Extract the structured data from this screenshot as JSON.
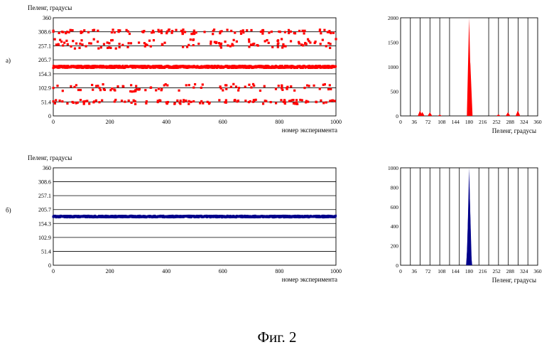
{
  "figure": {
    "caption": "Фиг. 2"
  },
  "chart_data": [
    {
      "id": "a-scatter",
      "panel_label": "а)",
      "type": "scatter",
      "ylabel": "Пеленг, градусы",
      "xlabel": "номер эксперимента",
      "xlim": [
        0,
        1000
      ],
      "ylim": [
        0,
        360
      ],
      "xticks": [
        "0",
        "200",
        "400",
        "600",
        "800",
        "1000"
      ],
      "yticks": [
        "0",
        "51.4",
        "102.9",
        "154.3",
        "205.7",
        "257.1",
        "308.6",
        "360"
      ],
      "grid_y": [
        51.4,
        102.9,
        154.3,
        205.7,
        257.1,
        308.6
      ],
      "color": "#ff0000",
      "series": [
        {
          "center": 180,
          "spread": 4,
          "points": 1000
        },
        {
          "center": 308.6,
          "spread": 8,
          "points": 100
        },
        {
          "center": 270,
          "spread": 12,
          "points": 70
        },
        {
          "center": 257.1,
          "spread": 10,
          "points": 50
        },
        {
          "center": 102.9,
          "spread": 14,
          "points": 90
        },
        {
          "center": 51.4,
          "spread": 8,
          "points": 110
        }
      ]
    },
    {
      "id": "a-hist",
      "type": "bar",
      "xlabel": "Пеленг, градусы",
      "xlim": [
        0,
        360
      ],
      "ylim": [
        0,
        2000
      ],
      "xticks": [
        "0",
        "36",
        "72",
        "108",
        "144",
        "180",
        "216",
        "252",
        "288",
        "324",
        "360"
      ],
      "yticks": [
        "0",
        "500",
        "1000",
        "1500",
        "2000"
      ],
      "sector_lines": [
        25.7,
        51.4,
        77.1,
        102.9,
        128.6,
        231.4,
        257.1,
        282.9,
        308.6,
        334.3
      ],
      "color": "#ff0000",
      "peaks": [
        {
          "x": 51,
          "value": 110
        },
        {
          "x": 57,
          "value": 80
        },
        {
          "x": 77,
          "value": 75
        },
        {
          "x": 103,
          "value": 25
        },
        {
          "x": 180,
          "value": 2000
        },
        {
          "x": 183,
          "value": 1100
        },
        {
          "x": 257,
          "value": 30
        },
        {
          "x": 282,
          "value": 75
        },
        {
          "x": 308,
          "value": 110
        }
      ]
    },
    {
      "id": "b-scatter",
      "panel_label": "б)",
      "type": "scatter",
      "ylabel": "Пеленг, градусы",
      "xlabel": "номер эксперимента",
      "xlim": [
        0,
        1000
      ],
      "ylim": [
        0,
        360
      ],
      "xticks": [
        "0",
        "200",
        "400",
        "600",
        "800",
        "1000"
      ],
      "yticks": [
        "0",
        "51.4",
        "102.9",
        "154.3",
        "205.7",
        "257.1",
        "308.6",
        "360"
      ],
      "grid_y": [
        51.4,
        102.9,
        154.3,
        205.7,
        257.1,
        308.6
      ],
      "color": "#00008b",
      "series": [
        {
          "center": 180,
          "spread": 3,
          "points": 1000
        }
      ]
    },
    {
      "id": "b-hist",
      "type": "bar",
      "xlabel": "Пеленг, градусы",
      "xlim": [
        0,
        360
      ],
      "ylim": [
        0,
        1000
      ],
      "xticks": [
        "0",
        "36",
        "72",
        "108",
        "144",
        "180",
        "216",
        "252",
        "288",
        "324",
        "360"
      ],
      "yticks": [
        "0",
        "200",
        "400",
        "600",
        "800",
        "1000"
      ],
      "sector_lines": [
        25.7,
        51.4,
        77.1,
        102.9,
        128.6,
        154.3,
        205.7,
        231.4,
        257.1,
        282.9,
        308.6,
        334.3
      ],
      "color": "#00008b",
      "peaks": [
        {
          "x": 178,
          "value": 350
        },
        {
          "x": 179,
          "value": 700
        },
        {
          "x": 180,
          "value": 1000
        },
        {
          "x": 181,
          "value": 800
        },
        {
          "x": 182,
          "value": 250
        }
      ]
    }
  ]
}
